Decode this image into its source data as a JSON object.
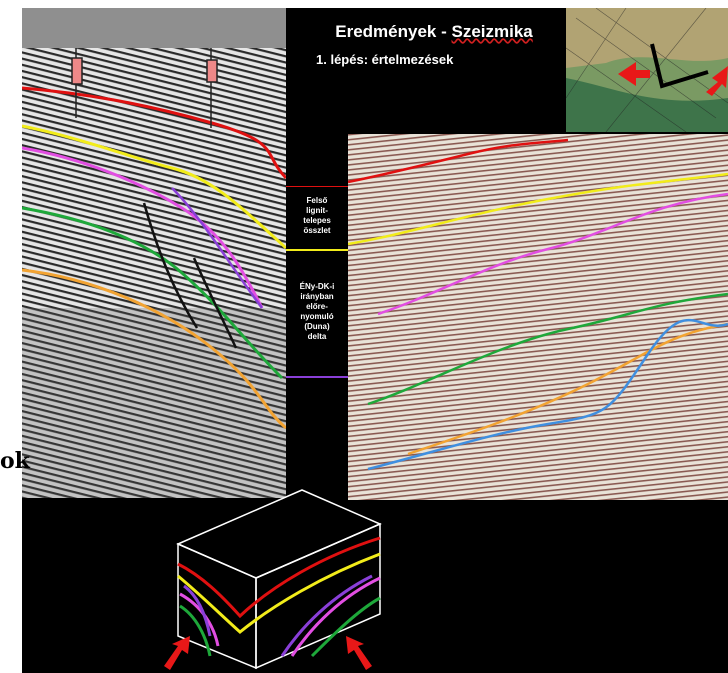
{
  "slide": {
    "title_main": "Eredmények - ",
    "title_emph": "Szeizmika",
    "subtitle": "1. lépés: értelmezések",
    "partial_left_text": "ok"
  },
  "legend": {
    "upper_label": [
      "Felső",
      "lignit-",
      "telepes",
      "összlet"
    ],
    "lower_label": [
      "ÉNy-DK-i",
      "irányban",
      "előre-",
      "nyomuló",
      "(Duna)",
      "delta"
    ]
  },
  "colors": {
    "red": "#e01010",
    "yellow": "#f2ec1a",
    "magenta": "#e24ee2",
    "green": "#1ea83a",
    "orange": "#f2a332",
    "blue": "#3f8fe0",
    "purple": "#8a3fd8",
    "background": "#000000"
  },
  "icons": {
    "arrows": "red-arrow-icon"
  }
}
